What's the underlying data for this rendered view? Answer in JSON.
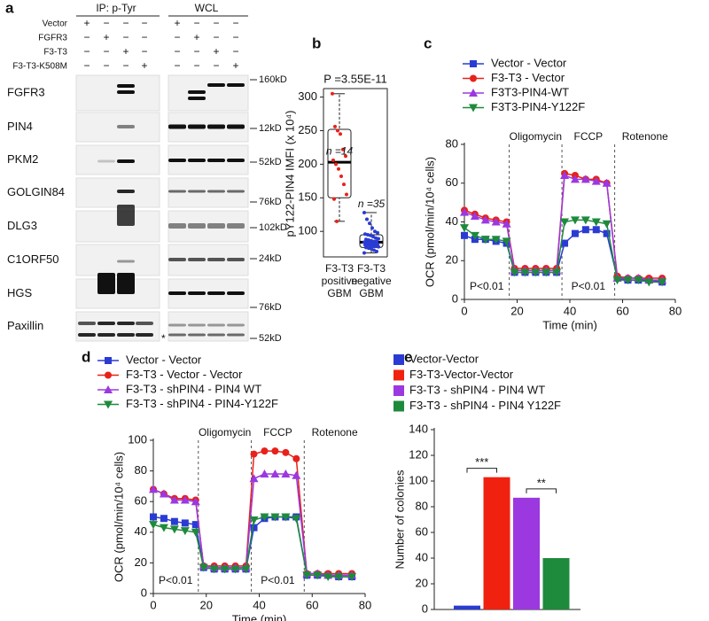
{
  "figure": {
    "panel_a": {
      "label": "a",
      "headers": [
        "IP: p-Tyr",
        "WCL"
      ],
      "conditions": [
        {
          "name": "Vector",
          "signs": [
            "+",
            "−",
            "−",
            "−",
            "+",
            "−",
            "−",
            "−"
          ]
        },
        {
          "name": "FGFR3",
          "signs": [
            "−",
            "+",
            "−",
            "−",
            "−",
            "+",
            "−",
            "−"
          ]
        },
        {
          "name": "F3-T3",
          "signs": [
            "−",
            "−",
            "+",
            "−",
            "−",
            "−",
            "+",
            "−"
          ]
        },
        {
          "name": "F3-T3-K508M",
          "signs": [
            "−",
            "−",
            "−",
            "+",
            "−",
            "−",
            "−",
            "+"
          ]
        }
      ],
      "proteins": [
        {
          "name": "FGFR3",
          "marker": "160kD"
        },
        {
          "name": "PIN4",
          "marker": "12kD"
        },
        {
          "name": "PKM2",
          "marker": "52kD"
        },
        {
          "name": "GOLGIN84",
          "marker": "76kD"
        },
        {
          "name": "DLG3",
          "marker": "102kD"
        },
        {
          "name": "C1ORF50",
          "marker": "24kD"
        },
        {
          "name": "HGS",
          "marker": "76kD"
        },
        {
          "name": "Paxillin",
          "marker": "52kD"
        }
      ],
      "footnote": "*"
    }
  },
  "chart_data": [
    {
      "type": "box",
      "panel_label": "b",
      "title": "P =3.55E-11",
      "y_label": "pY122-PIN4 IMFI (x 10⁴)",
      "categories": [
        "F3-T3 positive GBM",
        "F3-T3 negative GBM"
      ],
      "n_labels": [
        "n =14",
        "n =35"
      ],
      "boxes": [
        {
          "low": 115,
          "q1": 150,
          "median": 203,
          "q3": 252,
          "high": 305,
          "points": [
            305,
            256,
            250,
            245,
            222,
            212,
            206,
            200,
            193,
            182,
            170,
            155,
            148,
            115
          ]
        },
        {
          "low": 68,
          "q1": 76,
          "median": 84,
          "q3": 95,
          "high": 128,
          "points": [
            128,
            118,
            112,
            105,
            100,
            98,
            96,
            95,
            94,
            92,
            90,
            89,
            88,
            87,
            86,
            85,
            85,
            84,
            84,
            83,
            82,
            82,
            81,
            80,
            80,
            79,
            78,
            78,
            77,
            76,
            75,
            74,
            72,
            70,
            68
          ]
        }
      ],
      "color": "#e8211a",
      "color2": "#2a3bd4",
      "ylim": [
        62,
        310
      ],
      "yticks": [
        100,
        150,
        200,
        250,
        300
      ]
    },
    {
      "type": "line",
      "panel_label": "c",
      "x_label": "Time (min)",
      "y_label": "OCR (pmol/min/10⁴ cells)",
      "x": [
        0,
        4,
        8,
        12,
        16,
        19,
        23,
        27,
        31,
        35,
        38,
        42,
        46,
        50,
        54,
        58,
        62,
        66,
        70,
        75
      ],
      "series": [
        {
          "name": "Vector - Vector",
          "color": "#2a3bd4",
          "marker": "square",
          "values": [
            33,
            31,
            31,
            30,
            29,
            14,
            14,
            14,
            14,
            14,
            29,
            34,
            36,
            36,
            34,
            11,
            10,
            10,
            10,
            9
          ]
        },
        {
          "name": "F3-T3 - Vector",
          "color": "#e8211a",
          "marker": "circle",
          "values": [
            46,
            44,
            42,
            41,
            40,
            16,
            16,
            16,
            16,
            16,
            65,
            64,
            62,
            62,
            60,
            12,
            11,
            11,
            11,
            11
          ]
        },
        {
          "name": "F3T3-PIN4-WT",
          "color": "#9b38e0",
          "marker": "triangle-up",
          "values": [
            45,
            43,
            41,
            40,
            39,
            15,
            15,
            15,
            15,
            15,
            64,
            62,
            62,
            61,
            60,
            11,
            11,
            11,
            10,
            10
          ]
        },
        {
          "name": "F3T3-PIN4-Y122F",
          "color": "#1e8a3c",
          "marker": "triangle-down",
          "values": [
            37,
            33,
            31,
            31,
            30,
            14,
            14,
            14,
            14,
            14,
            40,
            41,
            41,
            40,
            39,
            10,
            10,
            10,
            9,
            9
          ]
        }
      ],
      "events": [
        {
          "label": "Oligomycin",
          "x": 17
        },
        {
          "label": "FCCP",
          "x": 37
        },
        {
          "label": "Rotenone",
          "x": 57
        }
      ],
      "annotations": [
        "P<0.01",
        "P<0.01"
      ],
      "xlim": [
        0,
        80
      ],
      "xticks": [
        0,
        20,
        40,
        60,
        80
      ],
      "ylim": [
        0,
        80
      ],
      "yticks": [
        0,
        20,
        40,
        60,
        80
      ]
    },
    {
      "type": "line",
      "panel_label": "d",
      "x_label": "Time (min)",
      "y_label": "OCR (pmol/min/10⁴ cells)",
      "x": [
        0,
        4,
        8,
        12,
        16,
        19,
        23,
        27,
        31,
        35,
        38,
        42,
        46,
        50,
        54,
        58,
        62,
        66,
        70,
        75
      ],
      "series": [
        {
          "name": "Vector - Vector",
          "color": "#2a3bd4",
          "marker": "square",
          "values": [
            50,
            49,
            47,
            46,
            45,
            17,
            16,
            16,
            16,
            16,
            43,
            49,
            50,
            50,
            50,
            12,
            12,
            12,
            11,
            11
          ]
        },
        {
          "name": "F3-T3 - Vector - Vector",
          "color": "#e8211a",
          "marker": "circle",
          "values": [
            68,
            65,
            62,
            62,
            61,
            18,
            18,
            18,
            18,
            18,
            91,
            93,
            93,
            92,
            88,
            13,
            13,
            13,
            13,
            13
          ]
        },
        {
          "name": "F3-T3 - shPIN4 - PIN4 WT",
          "color": "#9b38e0",
          "marker": "triangle-up",
          "values": [
            68,
            65,
            61,
            61,
            60,
            18,
            17,
            17,
            17,
            17,
            75,
            78,
            78,
            78,
            77,
            13,
            13,
            12,
            12,
            12
          ]
        },
        {
          "name": "F3-T3 - shPIN4 - PIN4-Y122F",
          "color": "#1e8a3c",
          "marker": "triangle-down",
          "values": [
            45,
            43,
            42,
            41,
            40,
            17,
            16,
            16,
            16,
            16,
            48,
            50,
            50,
            50,
            49,
            12,
            12,
            11,
            11,
            11
          ]
        }
      ],
      "events": [
        {
          "label": "Oligomycin",
          "x": 17
        },
        {
          "label": "FCCP",
          "x": 37
        },
        {
          "label": "Rotenone",
          "x": 57
        }
      ],
      "annotations": [
        "P<0.01",
        "P<0.01"
      ],
      "xlim": [
        0,
        80
      ],
      "xticks": [
        0,
        20,
        40,
        60,
        80
      ],
      "ylim": [
        0,
        100
      ],
      "yticks": [
        0,
        20,
        40,
        60,
        80,
        100
      ]
    },
    {
      "type": "bar",
      "panel_label": "e",
      "y_label": "Number of colonies",
      "categories": [
        "Vector-Vector",
        "F3-T3-Vector-Vector",
        "F3-T3 - shPIN4 - PIN4 WT",
        "F3-T3 - shPIN4 - PIN4 Y122F"
      ],
      "values": [
        3,
        103,
        87,
        40
      ],
      "colors": [
        "#2a3bd4",
        "#f0210f",
        "#9b38e0",
        "#1e8a3c"
      ],
      "annotations": [
        "***",
        "**"
      ],
      "ylim": [
        0,
        140
      ],
      "yticks": [
        0,
        20,
        40,
        60,
        80,
        100,
        120,
        140
      ]
    }
  ]
}
